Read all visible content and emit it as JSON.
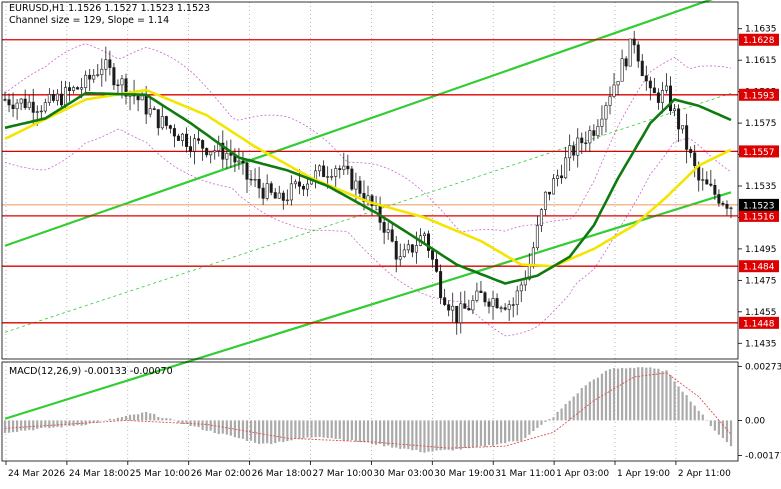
{
  "header": {
    "symbol_line": "EURUSD,H1  1.1526 1.1527 1.1523 1.1523",
    "channel_line": "Channel size = 129, Slope = 1.14"
  },
  "macd": {
    "label": "MACD(12,26,9) -0.00133 -0.00070",
    "axis_ticks": [
      {
        "value": 0.00273,
        "label": "0.00273"
      },
      {
        "value": 0.0,
        "label": "0.00"
      },
      {
        "value": -0.00177,
        "label": "-0.00177"
      }
    ],
    "range": [
      -0.00205,
      0.00295
    ]
  },
  "colors": {
    "up_candle": "#1a1a1a",
    "down_candle": "#1a1a1a",
    "level_line": "#dd0000",
    "current_price_line": "#e8792a",
    "channel": "#33cc33",
    "ma_fast": "#0f7a0f",
    "ma_slow": "#f2e600",
    "bollinger": "#cc66cc",
    "macd_hist": "#aaaaaa",
    "macd_signal": "#e05050"
  },
  "chart_data": {
    "type": "candlestick",
    "symbol": "EURUSD",
    "timeframe": "H1",
    "price_range": [
      1.1425,
      1.1652
    ],
    "axis_ticks": [
      1.1635,
      1.1615,
      1.1595,
      1.1575,
      1.1555,
      1.1535,
      1.1515,
      1.1495,
      1.1475,
      1.1455,
      1.1435
    ],
    "axis_tick_labels": [
      "1.1635",
      "1.1615",
      "1.1595",
      "1.1575",
      "1.1555",
      "1.1535",
      "1.1515",
      "1.1495",
      "1.1475",
      "1.1455",
      "1.1435"
    ],
    "levels": [
      {
        "value": 1.1628,
        "label": "1.1628"
      },
      {
        "value": 1.1593,
        "label": "1.1593"
      },
      {
        "value": 1.1557,
        "label": "1.1557"
      },
      {
        "value": 1.1516,
        "label": "1.1516"
      },
      {
        "value": 1.1484,
        "label": "1.1484"
      },
      {
        "value": 1.1448,
        "label": "1.1448"
      }
    ],
    "current_price": {
      "value": 1.1523,
      "label": "1.1523"
    },
    "x_labels": [
      "24 Mar 2026",
      "24 Mar 18:00",
      "25 Mar 10:00",
      "26 Mar 02:00",
      "26 Mar 18:00",
      "27 Mar 10:00",
      "30 Mar 03:00",
      "30 Mar 19:00",
      "31 Mar 11:00",
      "1 Apr 03:00",
      "1 Apr 19:00",
      "2 Apr 11:00"
    ],
    "channel": {
      "upper": [
        [
          0,
          1.1497
        ],
        [
          180,
          1.1658
        ]
      ],
      "lower": [
        [
          0,
          1.1387
        ],
        [
          180,
          1.1531
        ]
      ],
      "middle": [
        [
          0,
          1.1442
        ],
        [
          180,
          1.1594
        ]
      ]
    },
    "key_prices": [
      [
        0,
        1.159
      ],
      [
        10,
        1.1586
      ],
      [
        20,
        1.16
      ],
      [
        24,
        1.1612
      ],
      [
        30,
        1.1598
      ],
      [
        38,
        1.1577
      ],
      [
        46,
        1.1563
      ],
      [
        56,
        1.1555
      ],
      [
        60,
        1.154
      ],
      [
        68,
        1.1525
      ],
      [
        74,
        1.1538
      ],
      [
        82,
        1.1548
      ],
      [
        88,
        1.1533
      ],
      [
        94,
        1.151
      ],
      [
        98,
        1.1487
      ],
      [
        104,
        1.1505
      ],
      [
        108,
        1.147
      ],
      [
        112,
        1.1452
      ],
      [
        118,
        1.1465
      ],
      [
        126,
        1.146
      ],
      [
        130,
        1.1485
      ],
      [
        134,
        1.1528
      ],
      [
        140,
        1.1555
      ],
      [
        146,
        1.1572
      ],
      [
        150,
        1.1595
      ],
      [
        156,
        1.1628
      ],
      [
        160,
        1.1592
      ],
      [
        164,
        1.1593
      ],
      [
        168,
        1.1568
      ],
      [
        172,
        1.1538
      ],
      [
        176,
        1.153
      ],
      [
        180,
        1.1523
      ]
    ],
    "ma_slow_path": [
      [
        0,
        1.1565
      ],
      [
        20,
        1.159
      ],
      [
        35,
        1.1596
      ],
      [
        50,
        1.158
      ],
      [
        62,
        1.156
      ],
      [
        76,
        1.154
      ],
      [
        90,
        1.1525
      ],
      [
        104,
        1.1515
      ],
      [
        118,
        1.15
      ],
      [
        128,
        1.1485
      ],
      [
        136,
        1.1484
      ],
      [
        146,
        1.1495
      ],
      [
        156,
        1.151
      ],
      [
        164,
        1.1528
      ],
      [
        172,
        1.1548
      ],
      [
        180,
        1.1558
      ]
    ],
    "ma_fast_path": [
      [
        0,
        1.1572
      ],
      [
        10,
        1.1578
      ],
      [
        20,
        1.1594
      ],
      [
        35,
        1.1593
      ],
      [
        46,
        1.1575
      ],
      [
        58,
        1.1553
      ],
      [
        70,
        1.1545
      ],
      [
        80,
        1.1535
      ],
      [
        92,
        1.1518
      ],
      [
        100,
        1.1505
      ],
      [
        112,
        1.1485
      ],
      [
        124,
        1.1473
      ],
      [
        132,
        1.1478
      ],
      [
        140,
        1.149
      ],
      [
        146,
        1.151
      ],
      [
        152,
        1.154
      ],
      [
        160,
        1.1575
      ],
      [
        166,
        1.159
      ],
      [
        172,
        1.1586
      ],
      [
        180,
        1.1577
      ]
    ],
    "macd_hist_path": [
      [
        0,
        -0.0006
      ],
      [
        20,
        -0.0002
      ],
      [
        35,
        0.0004
      ],
      [
        50,
        -0.0005
      ],
      [
        64,
        -0.0012
      ],
      [
        78,
        -0.0008
      ],
      [
        92,
        -0.0012
      ],
      [
        104,
        -0.0016
      ],
      [
        116,
        -0.0014
      ],
      [
        128,
        -0.001
      ],
      [
        136,
        0.0002
      ],
      [
        144,
        0.0018
      ],
      [
        150,
        0.0026
      ],
      [
        158,
        0.0027
      ],
      [
        164,
        0.0025
      ],
      [
        170,
        0.001
      ],
      [
        176,
        -0.0005
      ],
      [
        180,
        -0.0013
      ]
    ],
    "macd_signal_path": [
      [
        0,
        -0.0004
      ],
      [
        30,
        0.0
      ],
      [
        50,
        -0.0002
      ],
      [
        70,
        -0.0009
      ],
      [
        92,
        -0.0011
      ],
      [
        110,
        -0.0014
      ],
      [
        124,
        -0.0013
      ],
      [
        136,
        -0.0006
      ],
      [
        146,
        0.001
      ],
      [
        156,
        0.0022
      ],
      [
        164,
        0.0024
      ],
      [
        172,
        0.0012
      ],
      [
        180,
        -0.0007
      ]
    ]
  }
}
